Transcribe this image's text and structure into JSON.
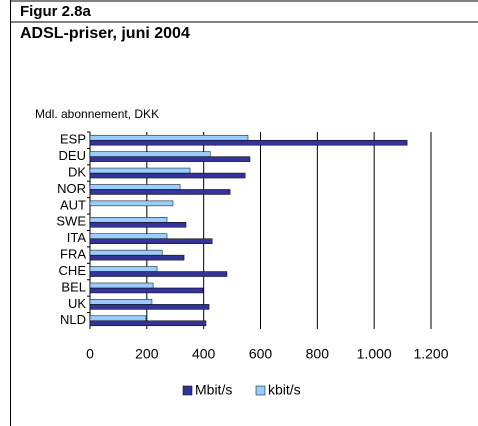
{
  "chart_data": {
    "type": "hbar",
    "figure_label": "Figur 2.8a",
    "title": "ADSL-priser, juni 2004",
    "axis_label": "Mdl. abonnement, DKK",
    "categories": [
      "ESP",
      "DEU",
      "DK",
      "NOR",
      "AUT",
      "SWE",
      "ITA",
      "FRA",
      "CHE",
      "BEL",
      "UK",
      "NLD"
    ],
    "series": [
      {
        "name": "Mbit/s",
        "color": "#333399",
        "values": [
          1116,
          563,
          546,
          493,
          null,
          338,
          430,
          331,
          482,
          398,
          419,
          408
        ]
      },
      {
        "name": "kbit/s",
        "color": "#99ccff",
        "values": [
          556,
          423,
          352,
          317,
          292,
          271,
          271,
          254,
          236,
          222,
          218,
          197
        ]
      }
    ],
    "xlim": [
      0,
      1200
    ],
    "xticks": [
      0,
      200,
      400,
      600,
      800,
      {
        "value": 1000,
        "label": "1.000"
      },
      {
        "value": 1200,
        "label": "1.200"
      }
    ],
    "grid": true,
    "legend": "bottom"
  }
}
